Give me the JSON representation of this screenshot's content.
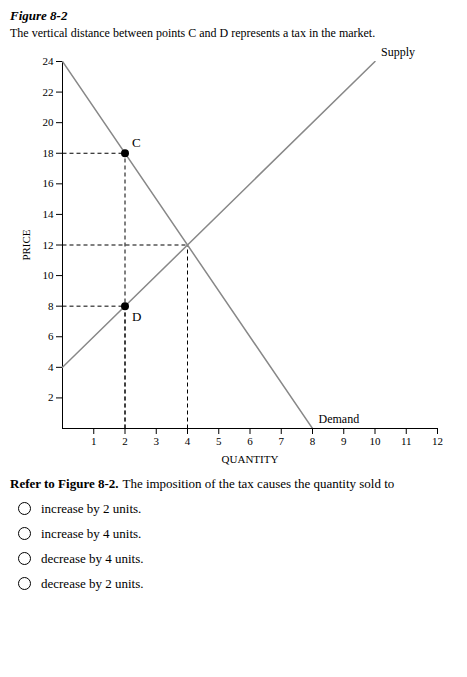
{
  "chart_data": {
    "type": "line",
    "title": "Figure 8-2",
    "subtitle": "The vertical distance between points C and D represents a tax in the market.",
    "series": [
      {
        "name": "Demand",
        "x": [
          0,
          8
        ],
        "values": [
          24,
          0
        ],
        "color": "#888888"
      },
      {
        "name": "Supply",
        "x": [
          0,
          10
        ],
        "values": [
          4,
          24
        ],
        "color": "#888888"
      }
    ],
    "points": [
      {
        "label": "C",
        "x": 2,
        "y": 18
      },
      {
        "label": "D",
        "x": 2,
        "y": 8
      }
    ],
    "guides": {
      "points": [
        {
          "x": 2,
          "y": 18
        },
        {
          "x": 2,
          "y": 8
        },
        {
          "x": 4,
          "y": 12
        }
      ],
      "line_style": "dashed"
    },
    "xlabel": "QUANTITY",
    "ylabel": "PRICE",
    "xlim": [
      0,
      12
    ],
    "ylim": [
      0,
      24
    ],
    "xticks": [
      1,
      2,
      3,
      4,
      5,
      6,
      7,
      8,
      9,
      10,
      11,
      12
    ],
    "yticks": [
      2,
      4,
      6,
      8,
      10,
      12,
      14,
      16,
      18,
      20,
      22,
      24
    ],
    "question": {
      "bold": "Refer to Figure 8-2.",
      "text": "The imposition of the tax causes the quantity sold to"
    },
    "options": [
      "increase by 2 units.",
      "increase by 4 units.",
      "decrease by 4 units.",
      "decrease by 2 units."
    ]
  }
}
